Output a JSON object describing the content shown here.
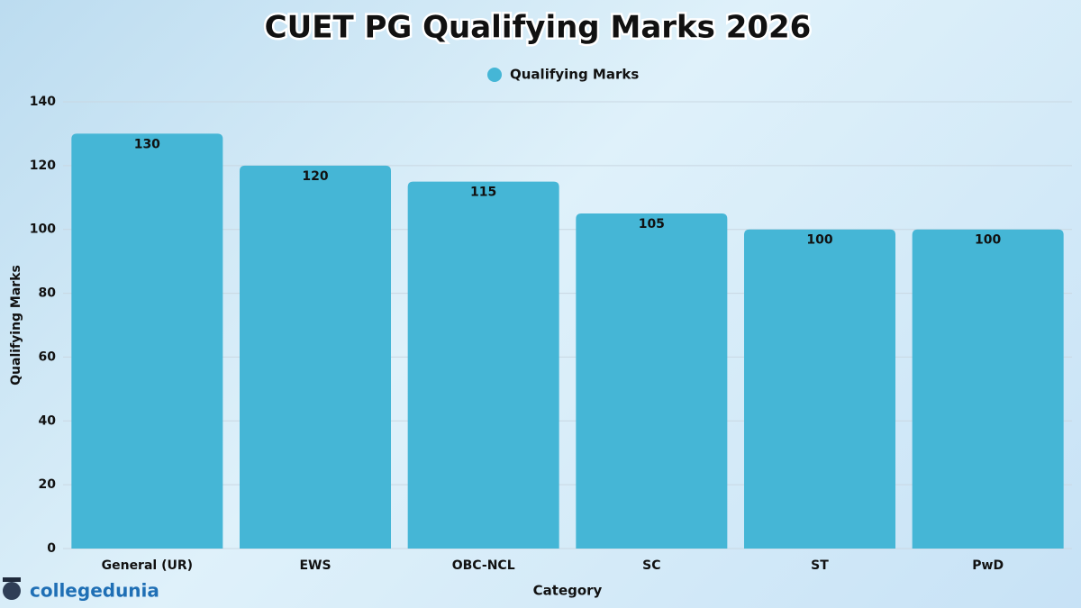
{
  "chart_data": {
    "type": "bar",
    "title": "CUET PG Qualifying Marks 2026",
    "categories": [
      "General (UR)",
      "EWS",
      "OBC-NCL",
      "SC",
      "ST",
      "PwD"
    ],
    "series": [
      {
        "name": "Qualifying Marks",
        "color": "#45b6d6",
        "values": [
          130,
          120,
          115,
          105,
          100,
          100
        ]
      }
    ],
    "x_label": "Category",
    "y_label": "Qualifying Marks",
    "ylim": [
      0,
      140
    ],
    "yticks": [
      0,
      20,
      40,
      60,
      80,
      100,
      120,
      140
    ],
    "grid": true,
    "legend": "top"
  },
  "logo": "collegedunia"
}
